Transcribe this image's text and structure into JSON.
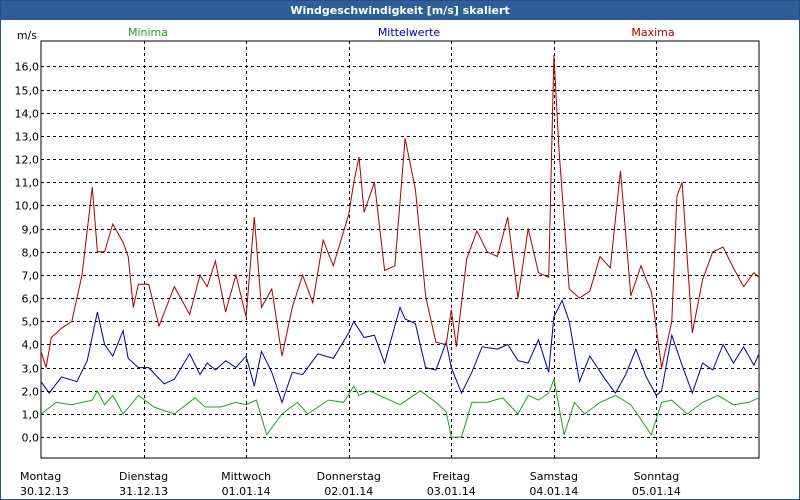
{
  "window": {
    "title": "Windgeschwindigkeit [m/s] skaliert"
  },
  "chart_data": {
    "type": "line",
    "title": "Windgeschwindigkeit [m/s] skaliert",
    "ylabel": "m/s",
    "xlabel": "",
    "ylim": [
      -0.9,
      17.1
    ],
    "y_ticks": [
      "0,0",
      "1,0",
      "2,0",
      "3,0",
      "4,0",
      "5,0",
      "6,0",
      "7,0",
      "8,0",
      "9,0",
      "10,0",
      "11,0",
      "12,0",
      "13,0",
      "14,0",
      "15,0",
      "16,0"
    ],
    "y_tick_values": [
      0,
      1,
      2,
      3,
      4,
      5,
      6,
      7,
      8,
      9,
      10,
      11,
      12,
      13,
      14,
      15,
      16
    ],
    "x_range_days": [
      0,
      7
    ],
    "x_ticks": [
      {
        "day": "Montag",
        "date": "30.12.13",
        "pos": 0
      },
      {
        "day": "Dienstag",
        "date": "31.12.13",
        "pos": 1
      },
      {
        "day": "Mittwoch",
        "date": "01.01.14",
        "pos": 2
      },
      {
        "day": "Donnerstag",
        "date": "02.01.14",
        "pos": 3
      },
      {
        "day": "Freitag",
        "date": "03.01.14",
        "pos": 4
      },
      {
        "day": "Samstag",
        "date": "04.01.14",
        "pos": 5
      },
      {
        "day": "Sonntag",
        "date": "05.01.14",
        "pos": 6
      }
    ],
    "grid": true,
    "series": [
      {
        "name": "Minima",
        "color": "#1fa01f",
        "x": [
          0,
          0.15,
          0.3,
          0.5,
          0.55,
          0.62,
          0.7,
          0.8,
          0.95,
          1.1,
          1.3,
          1.5,
          1.6,
          1.75,
          1.9,
          2.0,
          2.1,
          2.2,
          2.35,
          2.5,
          2.6,
          2.8,
          2.95,
          3.05,
          3.1,
          3.2,
          3.35,
          3.5,
          3.7,
          3.85,
          3.95,
          4.0,
          4.1,
          4.2,
          4.35,
          4.5,
          4.65,
          4.75,
          4.85,
          4.95,
          5.0,
          5.1,
          5.2,
          5.3,
          5.45,
          5.6,
          5.75,
          5.95,
          6.05,
          6.15,
          6.3,
          6.45,
          6.6,
          6.75,
          6.9,
          7.0
        ],
        "y": [
          1.0,
          1.5,
          1.4,
          1.6,
          2.0,
          1.4,
          1.8,
          1.0,
          1.8,
          1.3,
          1.0,
          1.7,
          1.3,
          1.3,
          1.5,
          1.4,
          1.6,
          0.1,
          1.0,
          1.5,
          1.0,
          1.6,
          1.5,
          2.2,
          1.8,
          2.0,
          1.7,
          1.4,
          2.0,
          1.5,
          1.1,
          0.0,
          0.0,
          1.5,
          1.5,
          1.7,
          1.0,
          1.8,
          1.6,
          1.9,
          2.5,
          0.1,
          1.5,
          1.0,
          1.5,
          1.8,
          1.4,
          0.1,
          1.5,
          1.6,
          1.0,
          1.5,
          1.8,
          1.4,
          1.5,
          1.7
        ]
      },
      {
        "name": "Mittelwerte",
        "color": "#0000a8",
        "x": [
          0,
          0.08,
          0.2,
          0.35,
          0.45,
          0.55,
          0.62,
          0.7,
          0.8,
          0.85,
          0.95,
          1.05,
          1.2,
          1.3,
          1.45,
          1.55,
          1.62,
          1.7,
          1.8,
          1.9,
          2.0,
          2.08,
          2.15,
          2.25,
          2.35,
          2.45,
          2.55,
          2.7,
          2.85,
          3.0,
          3.05,
          3.15,
          3.25,
          3.35,
          3.5,
          3.55,
          3.65,
          3.75,
          3.85,
          3.95,
          4.0,
          4.1,
          4.2,
          4.3,
          4.45,
          4.55,
          4.65,
          4.75,
          4.85,
          4.95,
          5.0,
          5.08,
          5.15,
          5.25,
          5.35,
          5.5,
          5.6,
          5.7,
          5.8,
          5.9,
          6.0,
          6.05,
          6.15,
          6.25,
          6.35,
          6.45,
          6.55,
          6.65,
          6.75,
          6.85,
          6.95,
          7.0
        ],
        "y": [
          2.4,
          1.9,
          2.6,
          2.4,
          3.3,
          5.4,
          4.0,
          3.5,
          4.6,
          3.4,
          3.0,
          3.0,
          2.3,
          2.5,
          3.6,
          2.7,
          3.2,
          2.9,
          3.3,
          3.0,
          3.5,
          2.2,
          3.7,
          2.8,
          1.5,
          2.8,
          2.7,
          3.6,
          3.4,
          4.5,
          5.0,
          4.3,
          4.4,
          3.2,
          5.6,
          5.1,
          4.9,
          3.0,
          2.9,
          4.1,
          3.0,
          1.9,
          2.8,
          3.9,
          3.8,
          4.0,
          3.3,
          3.2,
          4.2,
          2.8,
          5.2,
          5.9,
          5.0,
          2.4,
          3.5,
          2.5,
          1.9,
          2.7,
          3.8,
          2.6,
          1.8,
          2.0,
          4.4,
          3.1,
          1.9,
          3.2,
          2.9,
          4.0,
          3.2,
          3.9,
          3.1,
          3.6
        ]
      },
      {
        "name": "Maxima",
        "color": "#a80000",
        "x": [
          0,
          0.05,
          0.1,
          0.2,
          0.3,
          0.4,
          0.5,
          0.55,
          0.62,
          0.7,
          0.8,
          0.85,
          0.9,
          0.95,
          1.05,
          1.15,
          1.3,
          1.45,
          1.55,
          1.62,
          1.7,
          1.8,
          1.9,
          2.0,
          2.08,
          2.15,
          2.25,
          2.35,
          2.45,
          2.55,
          2.65,
          2.75,
          2.85,
          3.0,
          3.05,
          3.1,
          3.15,
          3.25,
          3.35,
          3.45,
          3.55,
          3.65,
          3.75,
          3.85,
          3.95,
          4.0,
          4.05,
          4.15,
          4.25,
          4.35,
          4.45,
          4.55,
          4.65,
          4.75,
          4.85,
          4.95,
          5.0,
          5.05,
          5.15,
          5.25,
          5.35,
          5.45,
          5.55,
          5.65,
          5.75,
          5.85,
          5.9,
          5.95,
          6.05,
          6.15,
          6.2,
          6.25,
          6.35,
          6.45,
          6.55,
          6.65,
          6.75,
          6.85,
          6.95,
          7.0
        ],
        "y": [
          3.7,
          3.0,
          4.3,
          4.7,
          5.0,
          7.0,
          10.8,
          8.0,
          8.0,
          9.2,
          8.4,
          7.8,
          5.6,
          6.6,
          6.6,
          4.8,
          6.5,
          5.3,
          7.0,
          6.5,
          7.6,
          5.4,
          7.0,
          5.2,
          9.5,
          5.6,
          6.4,
          3.5,
          5.6,
          7.0,
          5.8,
          8.5,
          7.4,
          9.6,
          11.0,
          12.1,
          9.7,
          11.0,
          7.2,
          7.4,
          12.9,
          10.7,
          6.1,
          4.1,
          4.0,
          5.5,
          3.9,
          7.7,
          8.9,
          8.0,
          7.8,
          9.5,
          6.0,
          9.0,
          7.1,
          6.9,
          16.5,
          12.4,
          6.4,
          6.0,
          6.3,
          7.8,
          7.3,
          11.5,
          6.1,
          7.4,
          6.8,
          6.3,
          3.0,
          5.0,
          10.4,
          11.0,
          4.5,
          6.8,
          8.0,
          8.2,
          7.3,
          6.5,
          7.1,
          6.9
        ]
      }
    ],
    "legend": [
      "Minima",
      "Mittelwerte",
      "Maxima"
    ],
    "legend_position": "top"
  }
}
